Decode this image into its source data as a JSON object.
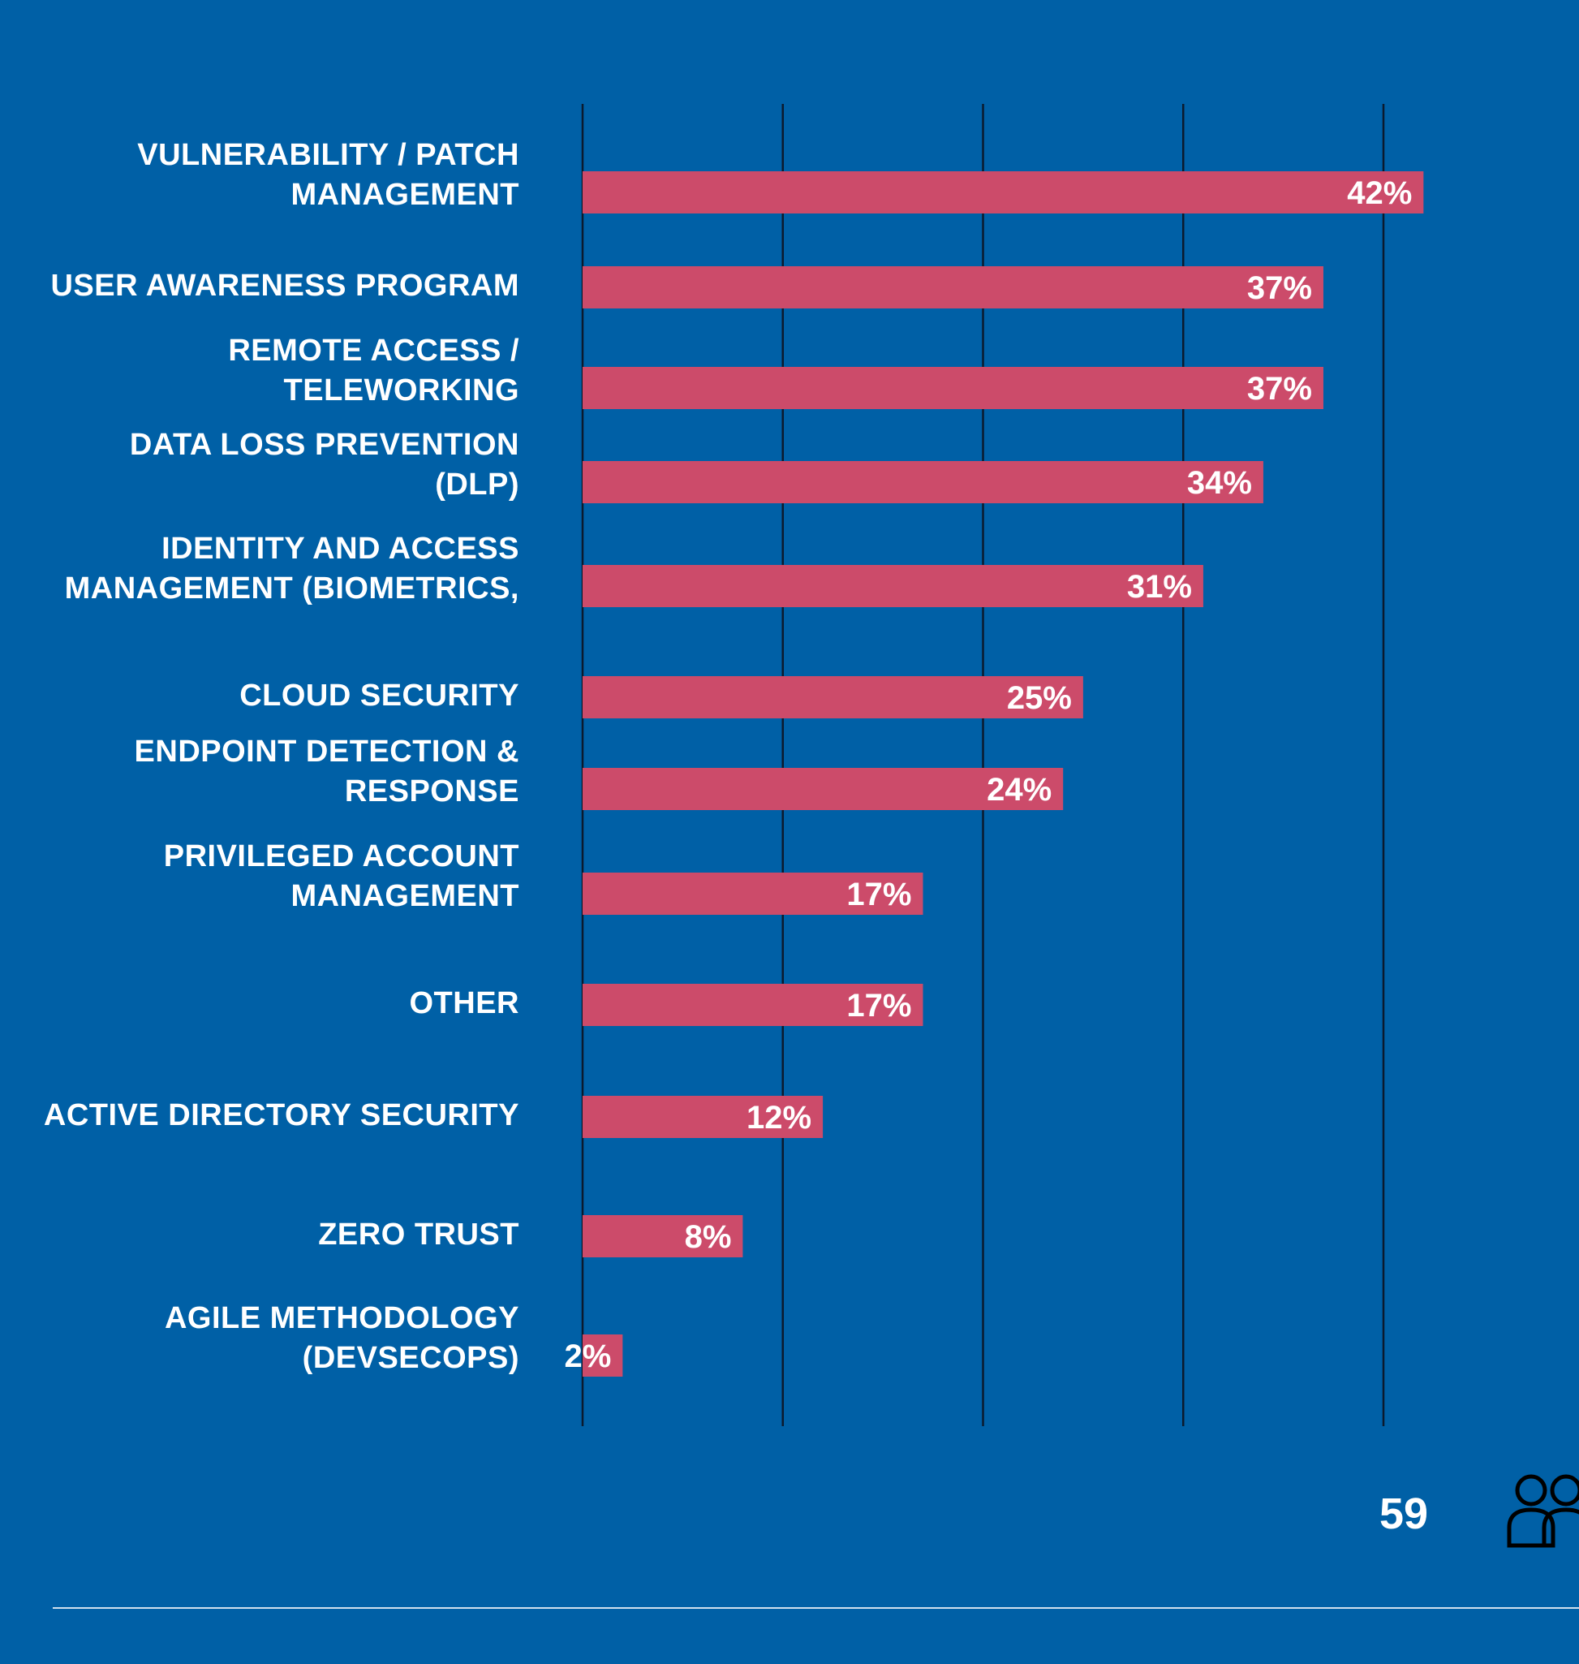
{
  "chart_data": {
    "type": "bar",
    "orientation": "horizontal",
    "categories": [
      [
        "VULNERABILITY / PATCH",
        "MANAGEMENT"
      ],
      [
        "USER AWARENESS PROGRAM"
      ],
      [
        "REMOTE ACCESS /",
        "TELEWORKING"
      ],
      [
        "DATA LOSS PREVENTION",
        "(DLP)"
      ],
      [
        "IDENTITY AND ACCESS",
        "MANAGEMENT (BIOMETRICS,"
      ],
      [
        "CLOUD SECURITY"
      ],
      [
        "ENDPOINT DETECTION &",
        "RESPONSE"
      ],
      [
        "PRIVILEGED ACCOUNT",
        "MANAGEMENT"
      ],
      [
        "OTHER"
      ],
      [
        "ACTIVE DIRECTORY SECURITY"
      ],
      [
        "ZERO TRUST"
      ],
      [
        "AGILE METHODOLOGY",
        "(DEVSECOPS)"
      ]
    ],
    "values": [
      42,
      37,
      37,
      34,
      31,
      25,
      24,
      17,
      17,
      12,
      8,
      2
    ],
    "data_labels": [
      "42%",
      "37%",
      "37%",
      "34%",
      "31%",
      "25%",
      "24%",
      "17%",
      "17%",
      "12%",
      "8%",
      "2%"
    ],
    "xlim": [
      0,
      40
    ],
    "gridlines": [
      0,
      10,
      20,
      30,
      40
    ],
    "grid": true,
    "title": "",
    "xlabel": "",
    "ylabel": ""
  },
  "footer": {
    "respondent_count": "59",
    "icon": "people-icon"
  },
  "colors": {
    "background": "#0060a6",
    "bar": "#cc4b6a",
    "text": "#ffffff",
    "gridline": "#0b1a2e",
    "rule": "#cfe0ef"
  }
}
